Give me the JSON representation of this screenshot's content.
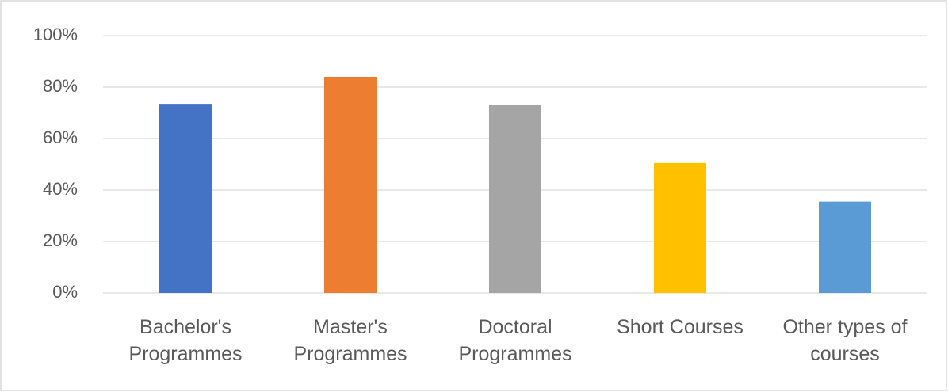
{
  "chart_data": {
    "type": "bar",
    "categories": [
      "Bachelor's Programmes",
      "Master's Programmes",
      "Doctoral Programmes",
      "Short Courses",
      "Other types of courses"
    ],
    "values": [
      73.5,
      84,
      73,
      50.5,
      35.5
    ],
    "colors": [
      "#4472c4",
      "#ed7d31",
      "#a5a5a5",
      "#ffc000",
      "#5b9bd5"
    ],
    "ylim": [
      0,
      100
    ],
    "yticks": [
      {
        "value": 0,
        "label": "0%"
      },
      {
        "value": 20,
        "label": "20%"
      },
      {
        "value": 40,
        "label": "40%"
      },
      {
        "value": 60,
        "label": "60%"
      },
      {
        "value": 80,
        "label": "80%"
      },
      {
        "value": 100,
        "label": "100%"
      }
    ],
    "grid": true
  }
}
